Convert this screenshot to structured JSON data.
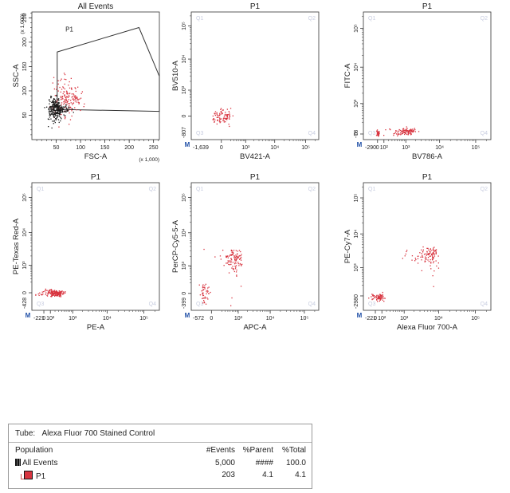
{
  "colors": {
    "event": "#d8343f",
    "gate": "#333333",
    "axis": "#333333",
    "quad_label": "#c8cde0",
    "marker": "#1f4fa6",
    "box": "#b7bccd"
  },
  "chart_data": [
    {
      "type": "scatter",
      "title": "All Events",
      "xlabel": "FSC-A",
      "ylabel": "SSC-A",
      "xscale": "linear",
      "yscale": "linear",
      "xlim": [
        0,
        262
      ],
      "ylim": [
        0,
        262
      ],
      "xticks": [
        50,
        100,
        150,
        200,
        250
      ],
      "xticklabels": [
        "50",
        "100",
        "150",
        "200",
        "250"
      ],
      "yticks": [
        50,
        100,
        150,
        200,
        250
      ],
      "yticklabels": [
        "50",
        "100",
        "150",
        "200",
        "250"
      ],
      "xmultiplier": "(x 1,000)",
      "ymultiplier": "(x 1,000)",
      "gate": {
        "name": "P1",
        "label_at": [
          77,
          222
        ],
        "vertices": [
          [
            52,
            180
          ],
          [
            220,
            230
          ],
          [
            262,
            130
          ],
          [
            262,
            58
          ],
          [
            52,
            62
          ]
        ]
      },
      "clusters": [
        {
          "population": "P1",
          "x": 70,
          "y": 88,
          "sx": 13,
          "sy": 22,
          "n": 140
        },
        {
          "population": "P1",
          "x": 90,
          "y": 85,
          "sx": 5,
          "sy": 6,
          "n": 25
        },
        {
          "population": "All Events",
          "x": 46,
          "y": 62,
          "sx": 7,
          "sy": 12,
          "n": 220
        },
        {
          "population": "All Events",
          "x": 60,
          "y": 64,
          "sx": 10,
          "sy": 4,
          "n": 60
        }
      ],
      "axis_marker": false
    },
    {
      "type": "scatter",
      "title": "P1",
      "xlabel": "BV421-A",
      "ylabel": "BV510-A",
      "xscale": "biexp",
      "yscale": "biexp",
      "xmin": -1639,
      "ymin": -807,
      "xticks": [
        0,
        1000,
        10000,
        100000
      ],
      "xticklabels": [
        "0",
        "10³",
        "10⁴",
        "10⁵"
      ],
      "yticks": [
        0,
        1000,
        10000,
        100000
      ],
      "yticklabels": [
        "0",
        "10³",
        "10⁴",
        "10⁵"
      ],
      "xminlabel": "-1,639",
      "yminlabel": "-807",
      "quadrants": [
        "Q1",
        "Q2",
        "Q3",
        "Q4"
      ],
      "clusters": [
        {
          "population": "P1",
          "x": 0,
          "y": 0,
          "sx": 100,
          "sy": 60,
          "n": 90
        }
      ],
      "axis_marker": true
    },
    {
      "type": "scatter",
      "title": "P1",
      "xlabel": "BV786-A",
      "ylabel": "FITC-A",
      "xscale": "biexp",
      "yscale": "biexp",
      "xmin": -290,
      "ymin": -78,
      "xticks": [
        0,
        100,
        1000,
        10000,
        100000
      ],
      "xticklabels": [
        "0",
        "10²",
        "10³",
        "10⁴",
        "10⁵"
      ],
      "yticks": [
        0,
        1000,
        10000,
        100000
      ],
      "yticklabels": [
        "0",
        "10³",
        "10⁴",
        "10⁵"
      ],
      "xminlabel": "-290",
      "yminlabel": "-78",
      "quadrants": [
        "Q1",
        "Q2",
        "Q3",
        "Q4"
      ],
      "clusters": [
        {
          "population": "P1",
          "x": 0,
          "y": 20,
          "sx": 8,
          "sy": 20,
          "n": 45
        },
        {
          "population": "P1",
          "x": 1000,
          "y": 40,
          "sx": 450,
          "sy": 25,
          "n": 110
        }
      ],
      "axis_marker": true
    },
    {
      "type": "scatter",
      "title": "P1",
      "xlabel": "PE-A",
      "ylabel": "PE-Texas Red-A",
      "xscale": "biexp",
      "yscale": "biexp",
      "xmin": -221,
      "ymin": -428,
      "xticks": [
        0,
        100,
        1000,
        10000,
        100000
      ],
      "xticklabels": [
        "0",
        "10²",
        "10³",
        "10⁴",
        "10⁵"
      ],
      "yticks": [
        0,
        1000,
        10000,
        100000
      ],
      "yticklabels": [
        "0",
        "10³",
        "10⁴",
        "10⁵"
      ],
      "xminlabel": "-221",
      "yminlabel": "-428",
      "quadrants": [
        "Q1",
        "Q2",
        "Q3",
        "Q4"
      ],
      "clusters": [
        {
          "population": "P1",
          "x": 180,
          "y": 0,
          "sx": 120,
          "sy": 25,
          "n": 170
        }
      ],
      "axis_marker": true
    },
    {
      "type": "scatter",
      "title": "P1",
      "xlabel": "APC-A",
      "ylabel": "PerCP-Cy5-5-A",
      "xscale": "biexp",
      "yscale": "biexp",
      "xmin": -572,
      "ymin": -399,
      "xticks": [
        0,
        1000,
        10000,
        100000
      ],
      "xticklabels": [
        "0",
        "10³",
        "10⁴",
        "10⁵"
      ],
      "yticks": [
        0,
        1000,
        10000,
        100000
      ],
      "yticklabels": [
        "0",
        "10³",
        "10⁴",
        "10⁵"
      ],
      "xminlabel": "-572",
      "yminlabel": "-399",
      "quadrants": [
        "Q1",
        "Q2",
        "Q3",
        "Q4"
      ],
      "clusters": [
        {
          "population": "P1",
          "x": -120,
          "y": 0,
          "sx": 50,
          "sy": 110,
          "n": 45
        },
        {
          "population": "P1",
          "x": 700,
          "y": 1800,
          "sx": 300,
          "sy": 700,
          "n": 110
        }
      ],
      "axis_marker": true
    },
    {
      "type": "scatter",
      "title": "P1",
      "xlabel": "Alexa Fluor 700-A",
      "ylabel": "PE-Cy7-A",
      "xscale": "biexp",
      "yscale": "biexp",
      "xmin": -221,
      "ymin": -298,
      "xticks": [
        0,
        100,
        1000,
        10000,
        100000
      ],
      "xticklabels": [
        "0",
        "10²",
        "10³",
        "10⁴",
        "10⁵"
      ],
      "yticks": [
        0,
        1000,
        10000,
        100000
      ],
      "yticklabels": [
        "0",
        "10³",
        "10⁴",
        "10⁵"
      ],
      "xminlabel": "-221",
      "yminlabel": "-298",
      "quadrants": [
        "Q1",
        "Q2",
        "Q3",
        "Q4"
      ],
      "clusters": [
        {
          "population": "P1",
          "x": 50,
          "y": -20,
          "sx": 60,
          "sy": 25,
          "n": 70
        },
        {
          "population": "P1",
          "x": 5500,
          "y": 2500,
          "sx": 2000,
          "sy": 800,
          "n": 110
        }
      ],
      "axis_marker": true
    }
  ],
  "stats": {
    "tube_label": "Tube:",
    "tube_name": "Alexa Fluor 700 Stained Control",
    "columns": [
      "Population",
      "#Events",
      "%Parent",
      "%Total"
    ],
    "rows": [
      {
        "name": "All Events",
        "events": "5,000",
        "parent": "####",
        "total": "100.0"
      },
      {
        "name": "P1",
        "events": "203",
        "parent": "4.1",
        "total": "4.1",
        "color": "#d8343f"
      }
    ]
  }
}
